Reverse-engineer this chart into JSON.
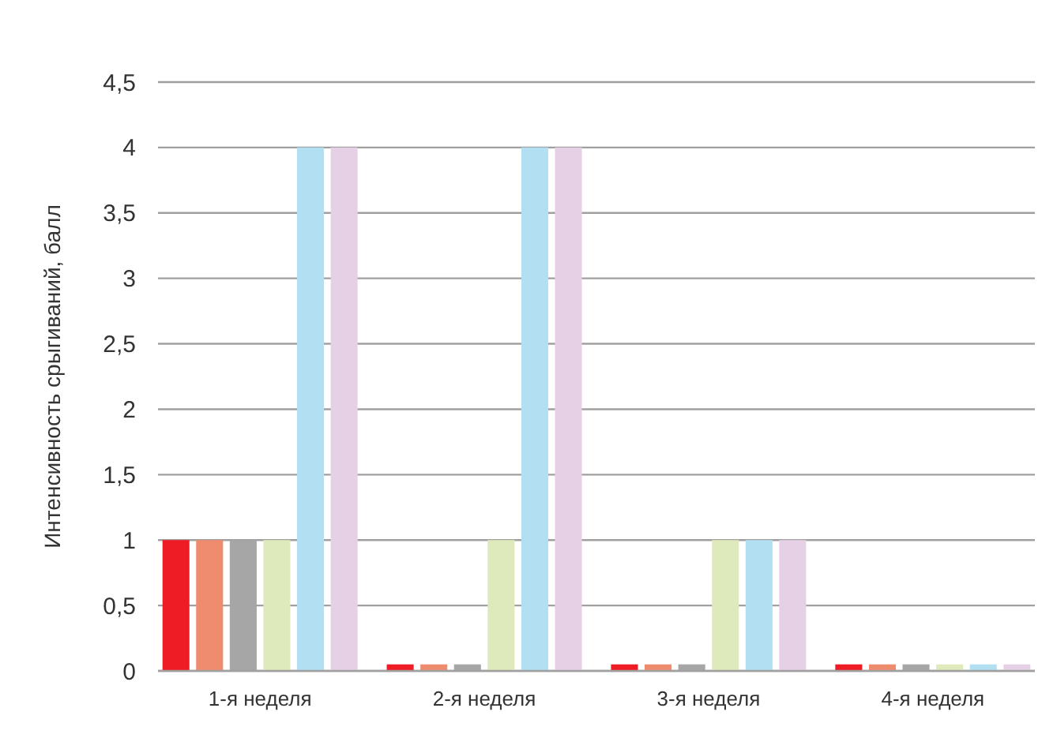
{
  "chart_data": {
    "type": "bar",
    "ylabel": "Интенсивность срыгиваний, балл",
    "categories": [
      "1-я неделя",
      "2-я неделя",
      "3-я неделя",
      "4-я неделя"
    ],
    "series": [
      {
        "color": "#ee1c25",
        "values": [
          1,
          0.05,
          0.05,
          0.05
        ]
      },
      {
        "color": "#ef8c6e",
        "values": [
          1,
          0.05,
          0.05,
          0.05
        ]
      },
      {
        "color": "#a6a6a6",
        "values": [
          1,
          0.05,
          0.05,
          0.05
        ]
      },
      {
        "color": "#dfeabc",
        "values": [
          1,
          1,
          1,
          0.05
        ]
      },
      {
        "color": "#b3dff3",
        "values": [
          4,
          4,
          1,
          0.05
        ]
      },
      {
        "color": "#e6d0e6",
        "values": [
          4,
          4,
          1,
          0.05
        ]
      }
    ],
    "ylim": [
      0,
      4.5
    ],
    "yticks": [
      {
        "value": 0,
        "label": "0"
      },
      {
        "value": 0.5,
        "label": "0,5"
      },
      {
        "value": 1,
        "label": "1"
      },
      {
        "value": 1.5,
        "label": "1,5"
      },
      {
        "value": 2,
        "label": "2"
      },
      {
        "value": 2.5,
        "label": "2,5"
      },
      {
        "value": 3,
        "label": "3"
      },
      {
        "value": 3.5,
        "label": "3,5"
      },
      {
        "value": 4,
        "label": "4"
      },
      {
        "value": 4.5,
        "label": "4,5"
      }
    ],
    "grid": "y"
  }
}
